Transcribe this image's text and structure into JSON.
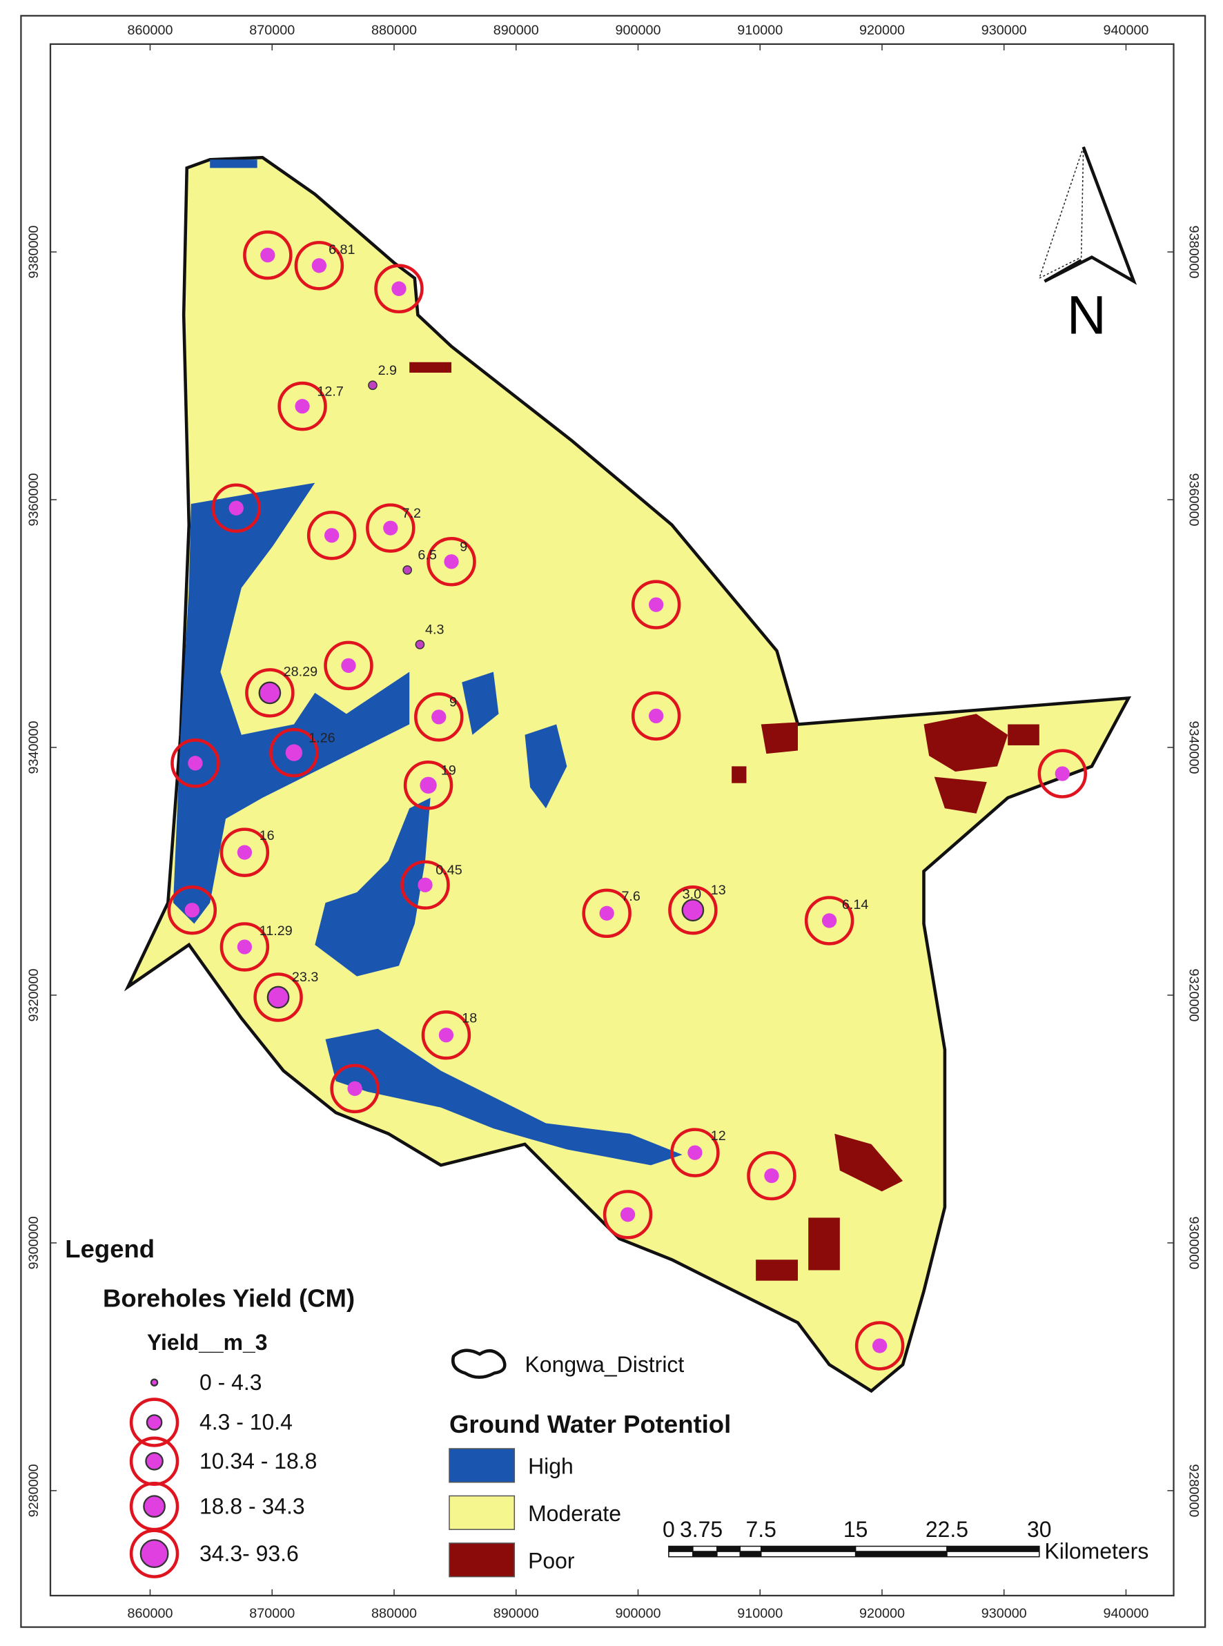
{
  "x_ticks": [
    "860000",
    "870000",
    "880000",
    "890000",
    "900000",
    "910000",
    "920000",
    "930000",
    "940000"
  ],
  "y_ticks": [
    "9380000",
    "9360000",
    "9340000",
    "9320000",
    "9300000",
    "9280000"
  ],
  "north": "N",
  "legend": {
    "title": "Legend",
    "subtitle": "Boreholes Yield (CM)",
    "field": "Yield__m_3",
    "classes": [
      "0 - 4.3",
      "4.3 - 10.4",
      "10.34 - 18.8",
      "18.8 - 34.3",
      "34.3- 93.6"
    ]
  },
  "boundary": "Kongwa_District",
  "potential": {
    "title": "Ground Water Potentiol",
    "classes": [
      "High",
      "Moderate",
      "Poor"
    ]
  },
  "scale": {
    "labels": [
      "0",
      "3.75",
      "7.5",
      "15",
      "22.5",
      "30"
    ],
    "unit": "Kilometers"
  },
  "borehole_labels": [
    "6.81",
    "2.9",
    "12.7",
    "7.2",
    "6.5",
    "9",
    "4.3",
    "28.29",
    "9",
    "1.26",
    "19",
    "16",
    "0.45",
    "7.6",
    "3.0",
    "13",
    "6.14",
    "11.29",
    "23.3",
    "18",
    "12"
  ]
}
